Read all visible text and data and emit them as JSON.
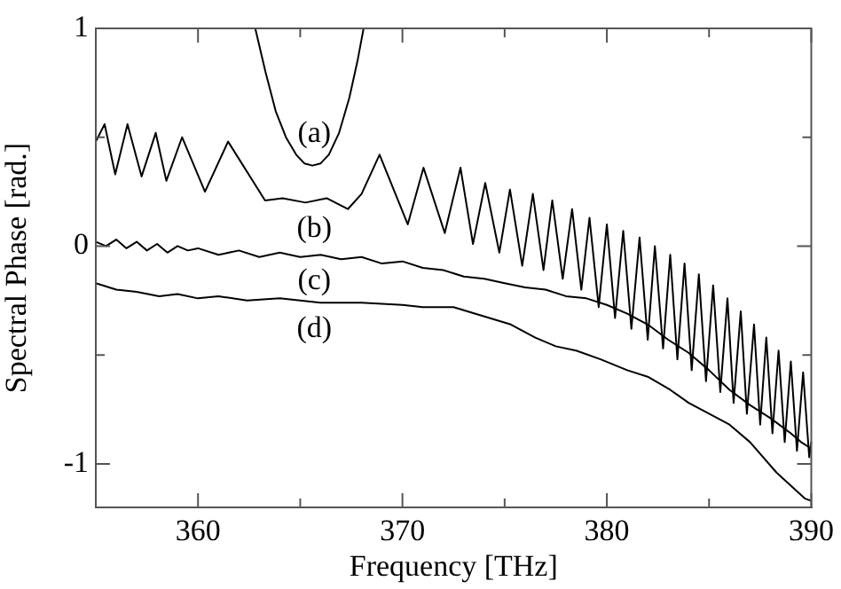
{
  "chart_data": {
    "type": "line",
    "xlabel": "Frequency [THz]",
    "ylabel": "Spectral Phase [rad.]",
    "xlim": [
      355,
      390
    ],
    "xticks": [
      {
        "value": 355,
        "label": null
      },
      360,
      {
        "value": 365,
        "label": null
      },
      370,
      {
        "value": 375,
        "label": null
      },
      380,
      {
        "value": 385,
        "label": null
      },
      390
    ],
    "ylim": [
      -1.2,
      1
    ],
    "yticks": [
      -1,
      {
        "value": -0.5,
        "label": null
      },
      0,
      {
        "value": 0.5,
        "label": null
      },
      1
    ],
    "grid": false,
    "legend": false,
    "marker": "none",
    "line_style": "solid",
    "series": [
      {
        "name": "(a)",
        "color": "#000000",
        "x": [
          362.8,
          363.3,
          363.8,
          364.3,
          364.8,
          365.2,
          365.6,
          366.0,
          366.4,
          366.9,
          367.4,
          367.8,
          368.1
        ],
        "values": [
          1,
          0.8,
          0.62,
          0.5,
          0.42,
          0.38,
          0.37,
          0.38,
          0.42,
          0.52,
          0.68,
          0.85,
          1
        ]
      },
      {
        "name": "(b)",
        "color": "#000000",
        "x": [
          355.0,
          355.43,
          355.95,
          356.55,
          357.24,
          357.93,
          358.45,
          359.22,
          360.34,
          361.47,
          363.28,
          364.14,
          365.26,
          366.29,
          367.33,
          368.0,
          368.88,
          370.26,
          371.03,
          372.07,
          372.84,
          373.45,
          374.05,
          374.74,
          375.26,
          375.86,
          376.38,
          376.9,
          377.33,
          377.84,
          378.3,
          378.75,
          379.15,
          379.6,
          380.0,
          380.4,
          380.8,
          381.2,
          381.6,
          382.0,
          382.35,
          382.75,
          383.1,
          383.45,
          383.8,
          384.15,
          384.5,
          384.85,
          385.2,
          385.55,
          385.9,
          386.2,
          386.55,
          386.85,
          387.2,
          387.5,
          387.8,
          388.1,
          388.4,
          388.7,
          389.0,
          389.3,
          389.6,
          389.9,
          390.0
        ],
        "values": [
          0.48,
          0.56,
          0.33,
          0.56,
          0.32,
          0.52,
          0.3,
          0.5,
          0.25,
          0.48,
          0.21,
          0.22,
          0.2,
          0.22,
          0.17,
          0.24,
          0.42,
          0.1,
          0.36,
          0.06,
          0.36,
          0.01,
          0.29,
          -0.03,
          0.26,
          -0.09,
          0.24,
          -0.11,
          0.21,
          -0.15,
          0.17,
          -0.2,
          0.13,
          -0.28,
          0.1,
          -0.33,
          0.07,
          -0.38,
          0.04,
          -0.43,
          0.0,
          -0.47,
          -0.04,
          -0.52,
          -0.08,
          -0.57,
          -0.13,
          -0.62,
          -0.18,
          -0.67,
          -0.24,
          -0.72,
          -0.3,
          -0.77,
          -0.36,
          -0.82,
          -0.42,
          -0.86,
          -0.48,
          -0.9,
          -0.53,
          -0.94,
          -0.58,
          -0.97,
          -0.9
        ]
      },
      {
        "name": "(c)",
        "color": "#000000",
        "x": [
          355.0,
          355.5,
          356.0,
          356.5,
          357.0,
          357.5,
          358.0,
          358.5,
          359.0,
          359.5,
          360.0,
          361.0,
          362.0,
          363.0,
          364.0,
          365.0,
          366.0,
          367.0,
          368.0,
          369.0,
          370.0,
          371.0,
          372.0,
          373.0,
          374.0,
          375.0,
          376.0,
          377.0,
          378.0,
          379.0,
          380.0,
          381.0,
          382.0,
          383.0,
          384.0,
          385.0,
          386.0,
          387.0,
          388.0,
          389.0,
          389.5,
          390.0
        ],
        "values": [
          0.02,
          0.0,
          0.03,
          -0.01,
          0.02,
          -0.02,
          0.01,
          -0.03,
          0.0,
          -0.02,
          -0.01,
          -0.04,
          -0.02,
          -0.05,
          -0.03,
          -0.05,
          -0.04,
          -0.06,
          -0.05,
          -0.08,
          -0.07,
          -0.1,
          -0.11,
          -0.14,
          -0.15,
          -0.17,
          -0.19,
          -0.2,
          -0.23,
          -0.24,
          -0.27,
          -0.31,
          -0.36,
          -0.43,
          -0.49,
          -0.57,
          -0.66,
          -0.73,
          -0.79,
          -0.86,
          -0.9,
          -0.93
        ]
      },
      {
        "name": "(d)",
        "color": "#000000",
        "x": [
          355.0,
          356.0,
          357.0,
          358.1,
          359.0,
          360.0,
          361.0,
          362.4,
          364.0,
          366.0,
          368.0,
          370.0,
          371.0,
          372.5,
          373.9,
          375.3,
          376.5,
          377.5,
          378.5,
          379.7,
          381.0,
          382.0,
          383.1,
          384.0,
          385.0,
          386.0,
          387.0,
          388.3,
          389.0,
          389.7,
          390.0
        ],
        "values": [
          -0.17,
          -0.2,
          -0.21,
          -0.23,
          -0.22,
          -0.24,
          -0.23,
          -0.25,
          -0.24,
          -0.26,
          -0.26,
          -0.27,
          -0.28,
          -0.28,
          -0.32,
          -0.36,
          -0.42,
          -0.46,
          -0.48,
          -0.52,
          -0.57,
          -0.6,
          -0.66,
          -0.72,
          -0.77,
          -0.82,
          -0.9,
          -1.04,
          -1.1,
          -1.16,
          -1.17
        ]
      }
    ]
  }
}
